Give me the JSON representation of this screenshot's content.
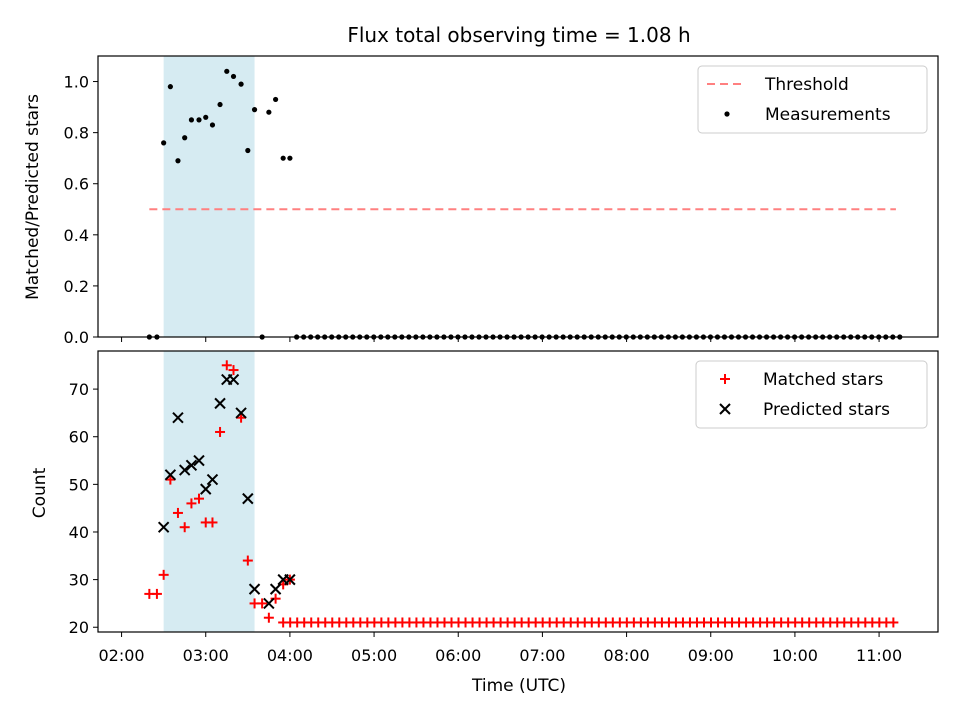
{
  "chart_data": {
    "title": "Flux total observing time = 1.08 h",
    "x_axis": {
      "label": "Time (UTC)",
      "range_hours": [
        1.72,
        11.7
      ],
      "ticks": [
        {
          "value": 2,
          "label": "02:00"
        },
        {
          "value": 3,
          "label": "03:00"
        },
        {
          "value": 4,
          "label": "04:00"
        },
        {
          "value": 5,
          "label": "05:00"
        },
        {
          "value": 6,
          "label": "06:00"
        },
        {
          "value": 7,
          "label": "07:00"
        },
        {
          "value": 8,
          "label": "08:00"
        },
        {
          "value": 9,
          "label": "09:00"
        },
        {
          "value": 10,
          "label": "10:00"
        },
        {
          "value": 11,
          "label": "11:00"
        }
      ]
    },
    "shaded_interval_hours": [
      2.5,
      3.58
    ],
    "panels": [
      {
        "type": "scatter",
        "ylabel": "Matched/Predicted stars",
        "ylim": [
          0,
          1.1
        ],
        "yticks": [
          {
            "value": 0.0,
            "label": "0.0"
          },
          {
            "value": 0.2,
            "label": "0.2"
          },
          {
            "value": 0.4,
            "label": "0.4"
          },
          {
            "value": 0.6,
            "label": "0.6"
          },
          {
            "value": 0.8,
            "label": "0.8"
          },
          {
            "value": 1.0,
            "label": "1.0"
          }
        ],
        "threshold": {
          "name": "Threshold",
          "value": 0.5,
          "x_range_hours": [
            2.33,
            11.2
          ],
          "color": "#ff8080"
        },
        "legend": {
          "position": "top-right",
          "entries": [
            "Threshold",
            "Measurements"
          ]
        },
        "measurements": {
          "name": "Measurements",
          "color": "#000000",
          "points": [
            [
              2.33,
              0.0
            ],
            [
              2.42,
              0.0
            ],
            [
              2.5,
              0.76
            ],
            [
              2.58,
              0.98
            ],
            [
              2.67,
              0.69
            ],
            [
              2.75,
              0.78
            ],
            [
              2.83,
              0.85
            ],
            [
              2.92,
              0.85
            ],
            [
              3.0,
              0.86
            ],
            [
              3.08,
              0.83
            ],
            [
              3.17,
              0.91
            ],
            [
              3.25,
              1.04
            ],
            [
              3.33,
              1.02
            ],
            [
              3.42,
              0.99
            ],
            [
              3.5,
              0.73
            ],
            [
              3.58,
              0.89
            ],
            [
              3.67,
              0.0
            ],
            [
              3.75,
              0.88
            ],
            [
              3.83,
              0.93
            ],
            [
              3.92,
              0.7
            ],
            [
              4.0,
              0.7
            ]
          ],
          "zero_series": {
            "start_hours": 4.08,
            "end_hours": 11.25,
            "step_hours": 0.08333,
            "value": 0.0
          }
        }
      },
      {
        "type": "scatter",
        "ylabel": "Count",
        "ylim": [
          19,
          78
        ],
        "yticks": [
          {
            "value": 20,
            "label": "20"
          },
          {
            "value": 30,
            "label": "30"
          },
          {
            "value": 40,
            "label": "40"
          },
          {
            "value": 50,
            "label": "50"
          },
          {
            "value": 60,
            "label": "60"
          },
          {
            "value": 70,
            "label": "70"
          }
        ],
        "legend": {
          "position": "top-right",
          "entries": [
            "Matched stars",
            "Predicted stars"
          ]
        },
        "series": [
          {
            "name": "Matched stars",
            "marker": "plus",
            "color": "#ff0000",
            "points": [
              [
                2.33,
                27
              ],
              [
                2.42,
                27
              ],
              [
                2.5,
                31
              ],
              [
                2.58,
                51
              ],
              [
                2.67,
                44
              ],
              [
                2.75,
                41
              ],
              [
                2.83,
                46
              ],
              [
                2.92,
                47
              ],
              [
                3.0,
                42
              ],
              [
                3.08,
                42
              ],
              [
                3.17,
                61
              ],
              [
                3.25,
                75
              ],
              [
                3.33,
                74
              ],
              [
                3.42,
                64
              ],
              [
                3.5,
                34
              ],
              [
                3.58,
                25
              ],
              [
                3.67,
                25
              ],
              [
                3.75,
                22
              ],
              [
                3.83,
                26
              ],
              [
                3.92,
                29
              ],
              [
                4.0,
                30
              ]
            ],
            "constant_tail": {
              "start_hours": 3.92,
              "end_hours": 11.25,
              "step_hours": 0.08333,
              "value": 21
            }
          },
          {
            "name": "Predicted stars",
            "marker": "x",
            "color": "#000000",
            "points": [
              [
                2.5,
                41
              ],
              [
                2.58,
                52
              ],
              [
                2.67,
                64
              ],
              [
                2.75,
                53
              ],
              [
                2.83,
                54
              ],
              [
                2.92,
                55
              ],
              [
                3.0,
                49
              ],
              [
                3.08,
                51
              ],
              [
                3.17,
                67
              ],
              [
                3.25,
                72
              ],
              [
                3.33,
                72
              ],
              [
                3.42,
                65
              ],
              [
                3.5,
                47
              ],
              [
                3.58,
                28
              ],
              [
                3.75,
                25
              ],
              [
                3.83,
                28
              ],
              [
                3.92,
                30
              ],
              [
                4.0,
                30
              ]
            ]
          }
        ]
      }
    ]
  }
}
